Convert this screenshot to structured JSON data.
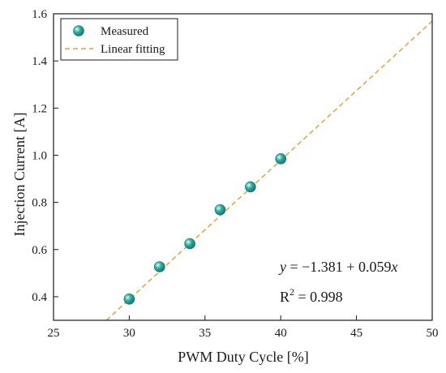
{
  "chart_data": {
    "type": "scatter",
    "xlabel": "PWM Duty Cycle [%]",
    "ylabel": "Injection Current [A]",
    "xlim": [
      25,
      50
    ],
    "ylim": [
      0.3,
      1.6
    ],
    "xticks": [
      25,
      30,
      35,
      40,
      45,
      50
    ],
    "yticks": [
      0.4,
      0.6,
      0.8,
      1.0,
      1.2,
      1.4,
      1.6
    ],
    "xtick_labels": [
      "25",
      "30",
      "35",
      "40",
      "45",
      "50"
    ],
    "ytick_labels": [
      "0.4",
      "0.6",
      "0.8",
      "1.0",
      "1.2",
      "1.4",
      "1.6"
    ],
    "grid": false,
    "legend_position": "top-left",
    "series": [
      {
        "name": "Measured",
        "kind": "scatter",
        "color": "#2ab3a3",
        "x": [
          30,
          32,
          34,
          36,
          38,
          40
        ],
        "y": [
          0.39,
          0.527,
          0.625,
          0.769,
          0.866,
          0.985
        ]
      },
      {
        "name": "Linear fitting",
        "kind": "line",
        "style": "dashed",
        "color": "#f0a030",
        "intercept": -1.381,
        "slope": 0.059
      }
    ],
    "annotations": {
      "equation_y": "y",
      "equation_eq": " = −1.381 + 0.059",
      "equation_x": "x",
      "r2_r": "R",
      "r2_exp": "2",
      "r2_val": " = 0.998"
    }
  }
}
